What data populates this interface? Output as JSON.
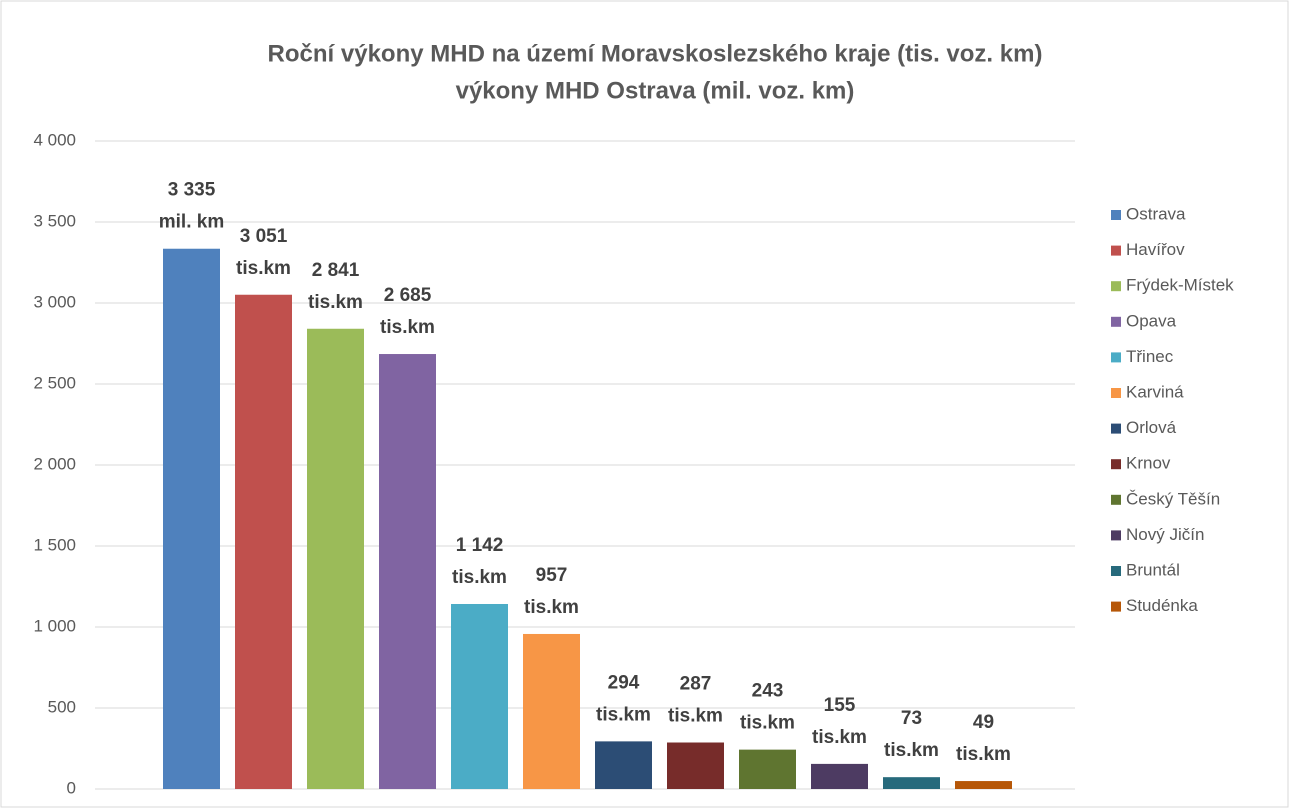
{
  "chart_data": {
    "type": "bar",
    "title": [
      "Roční výkony MHD na území Moravskoslezského kraje (tis. voz. km)",
      "výkony MHD Ostrava (mil. voz. km)"
    ],
    "series": [
      {
        "name": "Ostrava",
        "color": "#4f81bd",
        "values": [
          3335
        ],
        "value_labels": [
          [
            "3 335",
            "mil. km"
          ]
        ]
      },
      {
        "name": "Havířov",
        "color": "#c0504d",
        "values": [
          3051
        ],
        "value_labels": [
          [
            "3 051",
            "tis.km"
          ]
        ]
      },
      {
        "name": "Frýdek-Místek",
        "color": "#9bbb59",
        "values": [
          2841
        ],
        "value_labels": [
          [
            "2 841",
            "tis.km"
          ]
        ]
      },
      {
        "name": "Opava",
        "color": "#8064a2",
        "values": [
          2685
        ],
        "value_labels": [
          [
            "2 685",
            "tis.km"
          ]
        ]
      },
      {
        "name": "Třinec",
        "color": "#4bacc6",
        "values": [
          1142
        ],
        "value_labels": [
          [
            "1 142",
            "tis.km"
          ]
        ]
      },
      {
        "name": "Karviná",
        "color": "#f79646",
        "values": [
          957
        ],
        "value_labels": [
          [
            "957",
            "tis.km"
          ]
        ]
      },
      {
        "name": "Orlová",
        "color": "#2c4d75",
        "values": [
          294
        ],
        "value_labels": [
          [
            "294",
            "tis.km"
          ]
        ]
      },
      {
        "name": "Krnov",
        "color": "#772c2a",
        "values": [
          287
        ],
        "value_labels": [
          [
            "287",
            "tis.km"
          ]
        ]
      },
      {
        "name": "Český Těšín",
        "color": "#5f7530",
        "values": [
          243
        ],
        "value_labels": [
          [
            "243",
            "tis.km"
          ]
        ]
      },
      {
        "name": "Nový Jičín",
        "color": "#4d3b62",
        "values": [
          155
        ],
        "value_labels": [
          [
            "155",
            "tis.km"
          ]
        ]
      },
      {
        "name": "Bruntál",
        "color": "#276a7c",
        "values": [
          73
        ],
        "value_labels": [
          [
            "73",
            "tis.km"
          ]
        ]
      },
      {
        "name": "Studénka",
        "color": "#b65708",
        "values": [
          49
        ],
        "value_labels": [
          [
            "49",
            "tis.km"
          ]
        ]
      }
    ],
    "ylim": [
      0,
      4000
    ],
    "yticks": [
      0,
      500,
      {
        "value": 1000,
        "label": "1 000"
      },
      {
        "value": 1500,
        "label": "1 500"
      },
      {
        "value": 2000,
        "label": "2 000"
      },
      {
        "value": 2500,
        "label": "2 500"
      },
      {
        "value": 3000,
        "label": "3 000"
      },
      {
        "value": 3500,
        "label": "3 500"
      },
      {
        "value": 4000,
        "label": "4 000"
      }
    ],
    "grid": true,
    "legend": "right"
  }
}
